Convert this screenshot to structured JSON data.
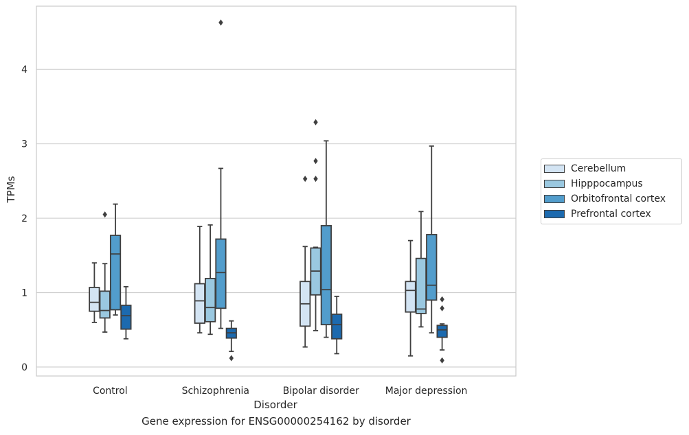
{
  "caption": "Gene expression for ENSG00000254162 by disorder",
  "chart_data": {
    "type": "box",
    "xlabel": "Disorder",
    "ylabel": "TPMs",
    "ylim": [
      -0.12,
      4.85
    ],
    "yticks": [
      0,
      1,
      2,
      3,
      4
    ],
    "grid": "horizontal",
    "legend_position": "right",
    "categories": [
      "Control",
      "Schizophrenia",
      "Bipolar disorder",
      "Major depression"
    ],
    "series": [
      {
        "name": "Cerebellum",
        "color": "#d3e4f3",
        "boxes": [
          {
            "whisker_low": 0.6,
            "q1": 0.75,
            "median": 0.87,
            "q3": 1.07,
            "whisker_high": 1.4,
            "outliers": []
          },
          {
            "whisker_low": 0.46,
            "q1": 0.59,
            "median": 0.89,
            "q3": 1.12,
            "whisker_high": 1.89,
            "outliers": []
          },
          {
            "whisker_low": 0.27,
            "q1": 0.55,
            "median": 0.85,
            "q3": 1.15,
            "whisker_high": 1.62,
            "outliers": [
              2.53
            ]
          },
          {
            "whisker_low": 0.15,
            "q1": 0.74,
            "median": 1.03,
            "q3": 1.15,
            "whisker_high": 1.7,
            "outliers": []
          }
        ]
      },
      {
        "name": "Hipppocampus",
        "color": "#9ac8e0",
        "boxes": [
          {
            "whisker_low": 0.47,
            "q1": 0.66,
            "median": 0.76,
            "q3": 1.02,
            "whisker_high": 1.39,
            "outliers": [
              2.05
            ]
          },
          {
            "whisker_low": 0.44,
            "q1": 0.61,
            "median": 0.8,
            "q3": 1.19,
            "whisker_high": 1.91,
            "outliers": []
          },
          {
            "whisker_low": 0.49,
            "q1": 0.97,
            "median": 1.29,
            "q3": 1.6,
            "whisker_high": 1.61,
            "outliers": [
              2.53,
              2.77,
              3.29
            ]
          },
          {
            "whisker_low": 0.54,
            "q1": 0.72,
            "median": 0.78,
            "q3": 1.46,
            "whisker_high": 2.09,
            "outliers": []
          }
        ]
      },
      {
        "name": "Orbitofrontal cortex",
        "color": "#529dcc",
        "boxes": [
          {
            "whisker_low": 0.7,
            "q1": 0.77,
            "median": 1.52,
            "q3": 1.77,
            "whisker_high": 2.19,
            "outliers": []
          },
          {
            "whisker_low": 0.52,
            "q1": 0.79,
            "median": 1.27,
            "q3": 1.72,
            "whisker_high": 2.67,
            "outliers": [
              4.63
            ]
          },
          {
            "whisker_low": 0.4,
            "q1": 0.57,
            "median": 1.04,
            "q3": 1.9,
            "whisker_high": 3.04,
            "outliers": []
          },
          {
            "whisker_low": 0.46,
            "q1": 0.9,
            "median": 1.1,
            "q3": 1.78,
            "whisker_high": 2.97,
            "outliers": []
          }
        ]
      },
      {
        "name": "Prefrontal cortex",
        "color": "#1c6aaf",
        "boxes": [
          {
            "whisker_low": 0.38,
            "q1": 0.51,
            "median": 0.69,
            "q3": 0.83,
            "whisker_high": 1.08,
            "outliers": []
          },
          {
            "whisker_low": 0.21,
            "q1": 0.39,
            "median": 0.46,
            "q3": 0.52,
            "whisker_high": 0.62,
            "outliers": [
              0.12
            ]
          },
          {
            "whisker_low": 0.18,
            "q1": 0.38,
            "median": 0.57,
            "q3": 0.71,
            "whisker_high": 0.95,
            "outliers": []
          },
          {
            "whisker_low": 0.23,
            "q1": 0.4,
            "median": 0.5,
            "q3": 0.56,
            "whisker_high": 0.58,
            "outliers": [
              0.09,
              0.79,
              0.91
            ]
          }
        ]
      }
    ]
  }
}
